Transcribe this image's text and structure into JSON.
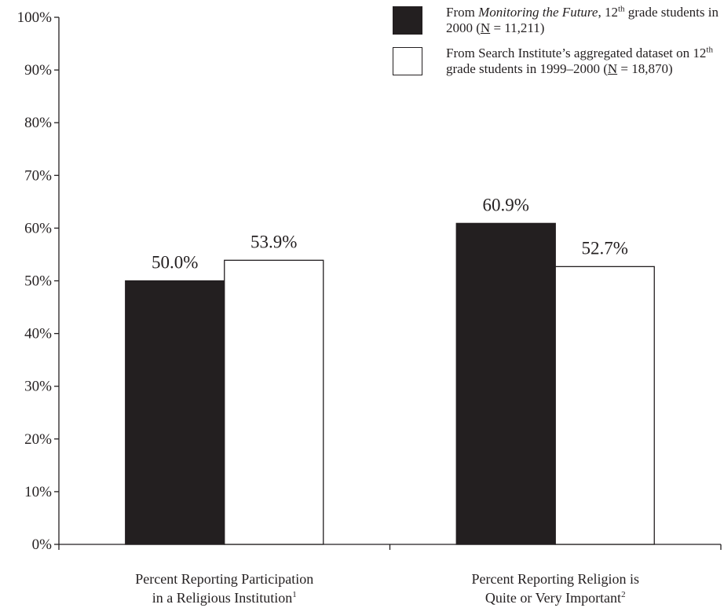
{
  "chart_data": {
    "type": "bar",
    "categories": [
      {
        "line1": "Percent Reporting Participation",
        "line2": "in a Religious Institution",
        "footnote": "1"
      },
      {
        "line1": "Percent Reporting Religion is",
        "line2": "Quite or Very Important",
        "footnote": "2"
      }
    ],
    "series": [
      {
        "values": [
          50.0,
          60.9
        ],
        "labels": [
          "50.0%",
          "60.9%"
        ],
        "color": "#231f20"
      },
      {
        "values": [
          53.9,
          52.7
        ],
        "labels": [
          "53.9%",
          "52.7%"
        ],
        "color": "#ffffff"
      }
    ],
    "ylim": [
      0,
      100
    ],
    "yticks": [
      {
        "value": 0,
        "label": "0%"
      },
      {
        "value": 10,
        "label": "10%"
      },
      {
        "value": 20,
        "label": "20%"
      },
      {
        "value": 30,
        "label": "30%"
      },
      {
        "value": 40,
        "label": "40%"
      },
      {
        "value": 50,
        "label": "50%"
      },
      {
        "value": 60,
        "label": "60%"
      },
      {
        "value": 70,
        "label": "70%"
      },
      {
        "value": 80,
        "label": "80%"
      },
      {
        "value": 90,
        "label": "90%"
      },
      {
        "value": 100,
        "label": "100%"
      }
    ],
    "grid": false,
    "legend_position": "top-right"
  },
  "legend": {
    "item1": {
      "prefix": "From ",
      "title_italic": "Monitoring the Future",
      "mid": ", 12",
      "sup": "th",
      "after_sup": " grade students in 2000 (",
      "n_symbol": "N",
      "n_value": " = 11,211)"
    },
    "item2": {
      "prefix": "From Search Institute’s aggregated dataset on 12",
      "sup": "th",
      "after_sup": " grade students in 1999–2000 (",
      "n_symbol": "N",
      "n_value": " = 18,870)"
    }
  }
}
